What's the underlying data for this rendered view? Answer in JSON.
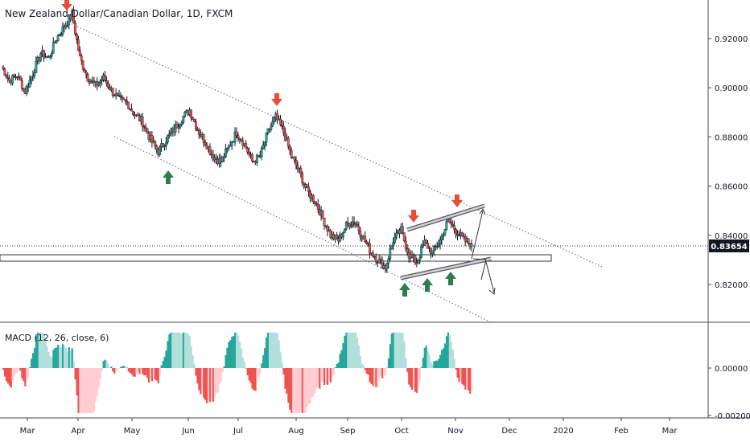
{
  "header": {
    "title": "New Zealand Dollar/Canadian Dollar, 1D, FXCM",
    "macd_label": "MACD (12, 26, close, 6)"
  },
  "colors": {
    "up": "#26a69a",
    "down": "#ef5350",
    "macd_pos_strong": "#26a69a",
    "macd_pos_weak": "#b2dfdb",
    "macd_neg_strong": "#ef5350",
    "macd_neg_weak": "#ffcdd2",
    "arrow_up": "#2e7d4f",
    "arrow_down": "#e74c3c",
    "price_tag": "#131722"
  },
  "chart_data": [
    {
      "type": "candlestick",
      "title": "New Zealand Dollar/Canadian Dollar, 1D, FXCM",
      "x_ticks": [
        "Mar",
        "Apr",
        "May",
        "Jun",
        "Jul",
        "Aug",
        "Sep",
        "Oct",
        "Nov",
        "Dec",
        "2020",
        "Feb",
        "Mar"
      ],
      "y_ticks": [
        "0.92000",
        "0.90000",
        "0.88000",
        "0.86000",
        "0.84000",
        "0.82000"
      ],
      "ylim": [
        0.8106,
        0.9353
      ],
      "last_price": "0.83654",
      "price_path": [
        [
          "Mar",
          0.9085
        ],
        [
          "Mar",
          0.903
        ],
        [
          "Mar",
          0.905
        ],
        [
          "Mar",
          0.8985
        ],
        [
          "Mar",
          0.906
        ],
        [
          "Mar",
          0.914
        ],
        [
          "Mar",
          0.912
        ],
        [
          "Mar",
          0.92
        ],
        [
          "Mar",
          0.925
        ],
        [
          "Apr",
          0.93
        ],
        [
          "Apr",
          0.912
        ],
        [
          "Apr",
          0.904
        ],
        [
          "Apr",
          0.901
        ],
        [
          "Apr",
          0.904
        ],
        [
          "Apr",
          0.899
        ],
        [
          "Apr",
          0.895
        ],
        [
          "May",
          0.894
        ],
        [
          "May",
          0.889
        ],
        [
          "May",
          0.886
        ],
        [
          "May",
          0.879
        ],
        [
          "May",
          0.874
        ],
        [
          "May",
          0.879
        ],
        [
          "May",
          0.883
        ],
        [
          "Jun",
          0.8875
        ],
        [
          "Jun",
          0.891
        ],
        [
          "Jun",
          0.883
        ],
        [
          "Jun",
          0.878
        ],
        [
          "Jun",
          0.872
        ],
        [
          "Jun",
          0.87
        ],
        [
          "Jul",
          0.876
        ],
        [
          "Jul",
          0.882
        ],
        [
          "Jul",
          0.877
        ],
        [
          "Jul",
          0.87
        ],
        [
          "Jul",
          0.872
        ],
        [
          "Jul",
          0.882
        ],
        [
          "Jul",
          0.888
        ],
        [
          "Aug",
          0.882
        ],
        [
          "Aug",
          0.872
        ],
        [
          "Aug",
          0.866
        ],
        [
          "Aug",
          0.858
        ],
        [
          "Aug",
          0.854
        ],
        [
          "Aug",
          0.847
        ],
        [
          "Aug",
          0.84
        ],
        [
          "Sep",
          0.838
        ],
        [
          "Sep",
          0.844
        ],
        [
          "Sep",
          0.846
        ],
        [
          "Sep",
          0.84
        ],
        [
          "Sep",
          0.834
        ],
        [
          "Sep",
          0.83
        ],
        [
          "Oct",
          0.827
        ],
        [
          "Oct",
          0.838
        ],
        [
          "Oct",
          0.842
        ],
        [
          "Oct",
          0.832
        ],
        [
          "Oct",
          0.829
        ],
        [
          "Oct",
          0.837
        ],
        [
          "Oct",
          0.833
        ],
        [
          "Nov",
          0.838
        ],
        [
          "Nov",
          0.846
        ],
        [
          "Nov",
          0.842
        ],
        [
          "Nov",
          0.838
        ],
        [
          "Nov",
          0.83654
        ]
      ],
      "annotations": {
        "down_arrows": [
          "Mar 2019 high",
          "Jul 2019 high",
          "Oct 2019 high",
          "Nov 2019 high"
        ],
        "up_arrows": [
          "May 2019 low",
          "Oct 2019 low",
          "Oct 2019 low",
          "Nov 2019 low"
        ]
      }
    },
    {
      "type": "histogram",
      "title": "MACD (12, 26, close, 6)",
      "y_ticks": [
        "0.00000",
        "-0.00200"
      ],
      "ylim": [
        -0.0021,
        0.0017
      ]
    }
  ]
}
